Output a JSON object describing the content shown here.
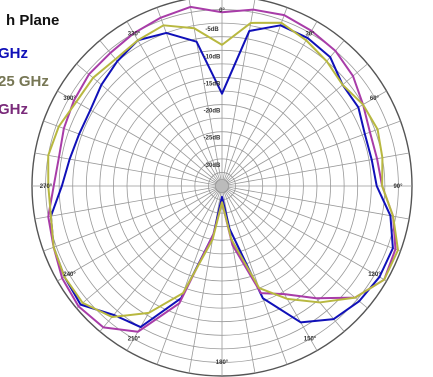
{
  "chart_data": {
    "type": "line",
    "subtype": "polar",
    "title": "h Plane",
    "legend_entries_partial": [
      "GHz",
      "25 GHz",
      "GHz"
    ],
    "angle_unit_suffix": "°",
    "angle_ticks": [
      0,
      30,
      60,
      90,
      120,
      150,
      180,
      210,
      240,
      270,
      300,
      330
    ],
    "radial_ticks": [
      "-5dB",
      "-10dB",
      "-15dB",
      "-20dB",
      "-25dB",
      "-30dB"
    ],
    "radial_range_db": [
      -35,
      0
    ],
    "grid": true,
    "legend_position": "top-left",
    "series": [
      {
        "color": "#1010b8",
        "angles_deg": [
          0,
          10,
          20,
          30,
          40,
          50,
          60,
          70,
          80,
          90,
          100,
          110,
          120,
          130,
          140,
          150,
          160,
          170,
          180,
          190,
          200,
          210,
          220,
          230,
          240,
          250,
          260,
          270,
          280,
          290,
          300,
          310,
          320,
          330,
          340,
          350,
          360
        ],
        "gain_db": [
          -18,
          -6,
          -3.5,
          -3.5,
          -4,
          -6,
          -6,
          -7,
          -7,
          -6.5,
          -3.5,
          -1.5,
          -1.5,
          -2,
          -3,
          -6,
          -13,
          -27,
          -33,
          -26,
          -13,
          -5,
          -4,
          -1,
          -1.5,
          -2,
          -3,
          -5.5,
          -6.5,
          -7,
          -7,
          -6,
          -5,
          -4,
          -5,
          -8,
          -18
        ]
      },
      {
        "color": "#a83ca8",
        "angles_deg": [
          0,
          10,
          20,
          30,
          40,
          50,
          60,
          70,
          80,
          90,
          100,
          110,
          120,
          130,
          140,
          150,
          160,
          170,
          180,
          190,
          200,
          210,
          220,
          230,
          240,
          250,
          260,
          270,
          280,
          290,
          300,
          310,
          320,
          330,
          340,
          350,
          360
        ],
        "gain_db": [
          -3,
          -2,
          -1.5,
          -2,
          -2.5,
          -3.5,
          -5,
          -6,
          -6,
          -5.5,
          -3,
          -1,
          -0.5,
          -3,
          -8,
          -12,
          -14,
          -24,
          -32,
          -26,
          -12,
          -4,
          -1,
          -0.5,
          -1,
          -2,
          -2.5,
          -4,
          -4.5,
          -4,
          -3.5,
          -3,
          -3,
          -2.5,
          -2,
          -1.5,
          -3
        ]
      },
      {
        "color": "#b8b840",
        "angles_deg": [
          0,
          10,
          20,
          30,
          40,
          50,
          60,
          70,
          80,
          90,
          100,
          110,
          120,
          130,
          140,
          150,
          160,
          170,
          180,
          190,
          200,
          210,
          220,
          230,
          240,
          250,
          260,
          270,
          280,
          290,
          300,
          310,
          320,
          330,
          340,
          350,
          360
        ],
        "gain_db": [
          -9,
          -4.5,
          -3,
          -4,
          -5,
          -6,
          -5,
          -4.5,
          -5,
          -5.5,
          -3,
          -0.5,
          -0.5,
          -3,
          -7,
          -11,
          -15,
          -25,
          -32,
          -25,
          -14,
          -8,
          -3.5,
          -1.5,
          -1.5,
          -2,
          -3,
          -3,
          -2.5,
          -3,
          -4,
          -4,
          -4.5,
          -4,
          -3.5,
          -5.5,
          -9
        ]
      }
    ]
  }
}
